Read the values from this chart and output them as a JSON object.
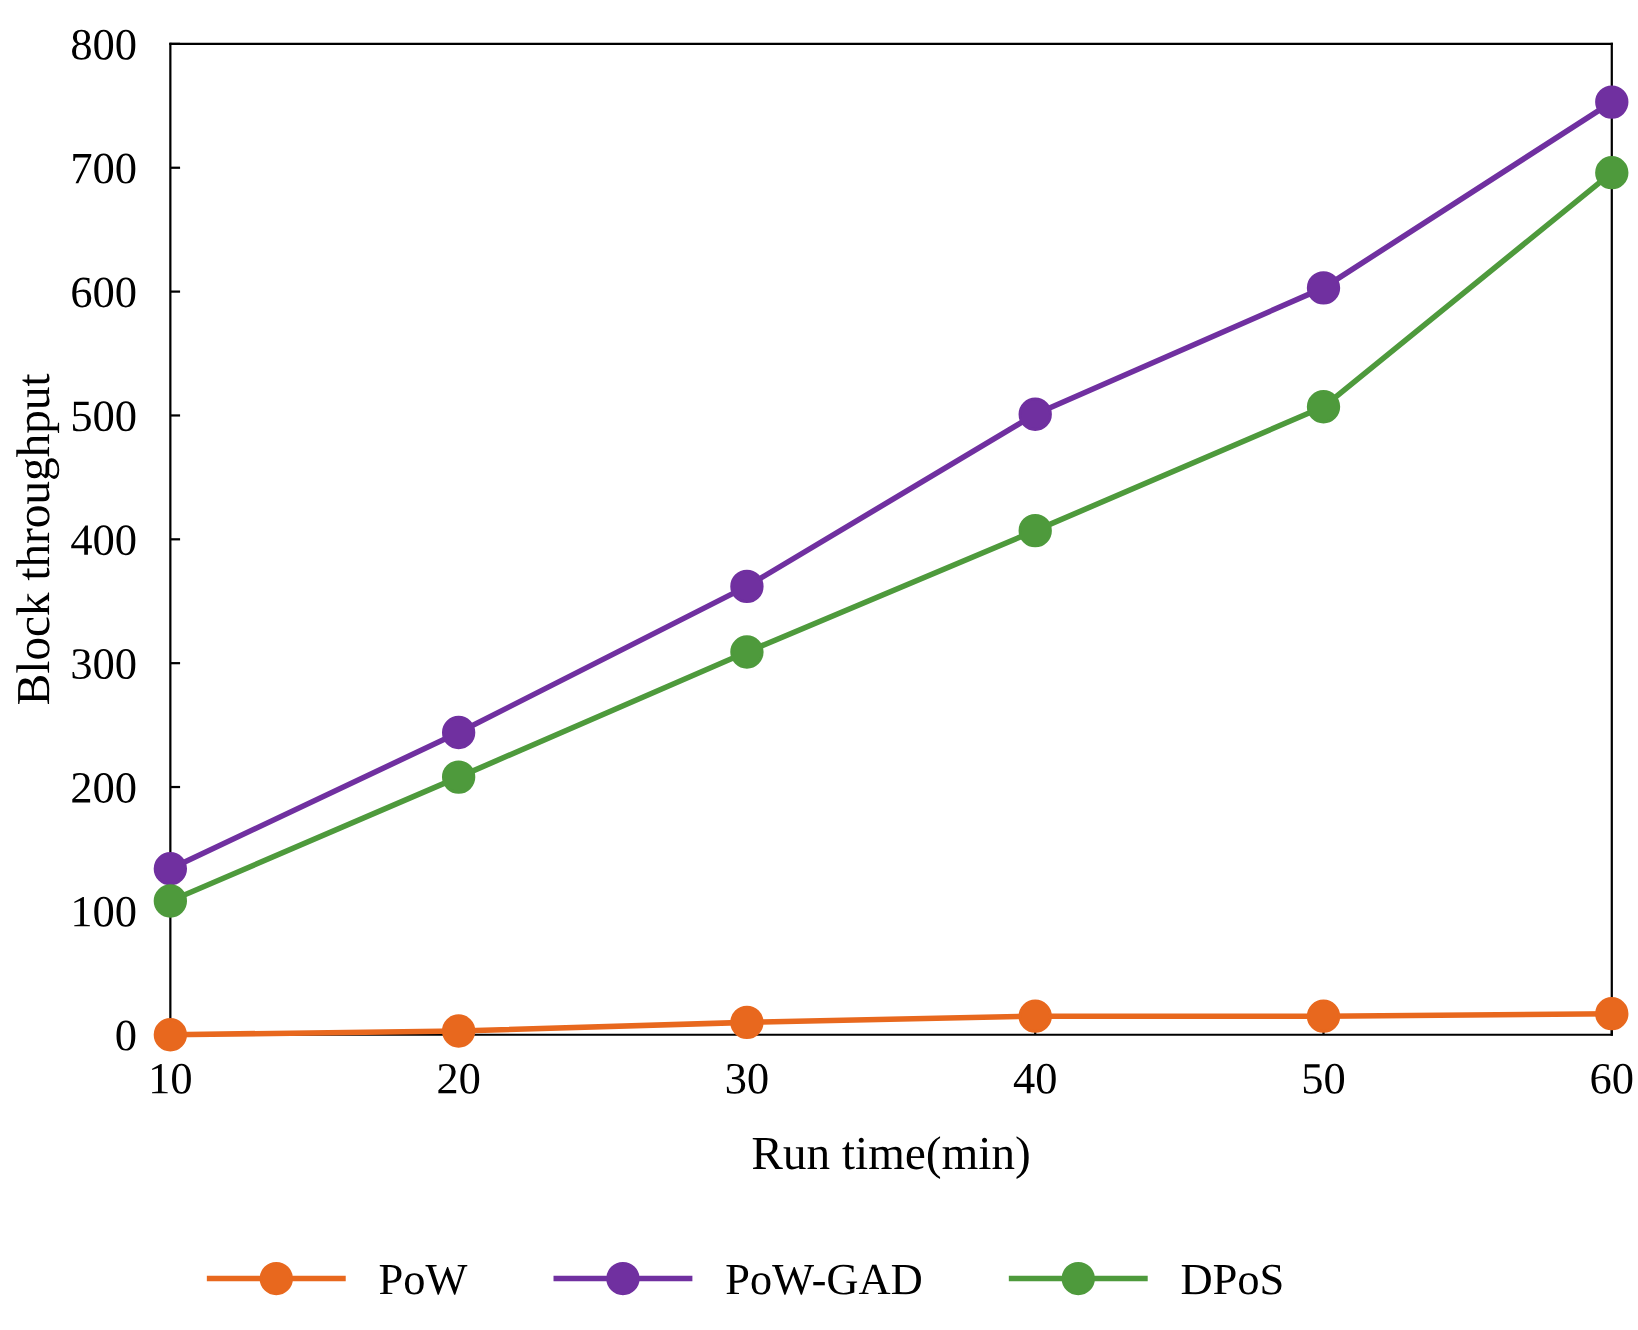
{
  "chart_data": {
    "type": "line",
    "xlabel": "Run time(min)",
    "ylabel": "Block throughput",
    "x": [
      10,
      20,
      30,
      40,
      50,
      60
    ],
    "series": [
      {
        "name": "PoW",
        "color": "#e8681e",
        "values": [
          0,
          3,
          10,
          15,
          15,
          17
        ]
      },
      {
        "name": "PoW-GAD",
        "color": "#7030a0",
        "values": [
          134,
          244,
          362,
          501,
          603,
          753
        ]
      },
      {
        "name": "DPoS",
        "color": "#4e9a3c",
        "values": [
          108,
          208,
          309,
          407,
          507,
          696
        ]
      }
    ],
    "xlim": [
      10,
      60
    ],
    "xticks": [
      10,
      20,
      30,
      40,
      50,
      60
    ],
    "ylim": [
      0,
      800
    ],
    "yticks": [
      0,
      100,
      200,
      300,
      400,
      500,
      600,
      700,
      800
    ],
    "grid": false,
    "legend": "bottom",
    "marker": "circle",
    "line_style": "solid"
  }
}
